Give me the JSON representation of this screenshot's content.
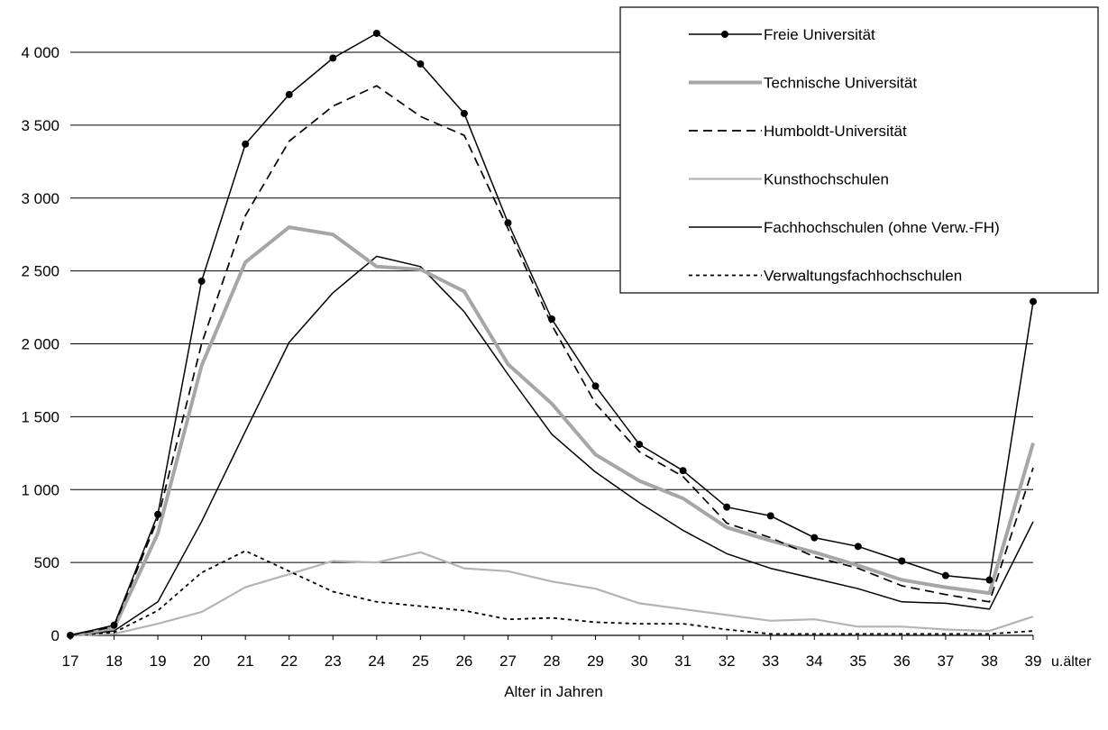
{
  "chart_data": {
    "type": "line",
    "title": "",
    "xlabel": "Alter in Jahren",
    "ylabel": "",
    "categories": [
      "17",
      "18",
      "19",
      "20",
      "21",
      "22",
      "23",
      "24",
      "25",
      "26",
      "27",
      "28",
      "29",
      "30",
      "31",
      "32",
      "33",
      "34",
      "35",
      "36",
      "37",
      "38",
      "39"
    ],
    "x_suffix_label": "u.älter",
    "ylim": [
      0,
      4000
    ],
    "yticks": [
      0,
      500,
      1000,
      1500,
      2000,
      2500,
      3000,
      3500,
      4000
    ],
    "ytick_labels": [
      "0",
      "500",
      "1 000",
      "1 500",
      "2 000",
      "2 500",
      "3 000",
      "3 500",
      "4 000"
    ],
    "grid": "horizontal",
    "legend_position": "top-right",
    "series": [
      {
        "name": "Freie Universität",
        "style": "solid-marker",
        "color": "#000000",
        "values": [
          0,
          70,
          830,
          2430,
          3370,
          3710,
          3960,
          4130,
          3920,
          3580,
          2830,
          2170,
          1710,
          1310,
          1130,
          880,
          820,
          670,
          610,
          510,
          410,
          380,
          2290
        ]
      },
      {
        "name": "Technische Universität",
        "style": "thick-grey",
        "color": "#a6a6a6",
        "values": [
          0,
          50,
          700,
          1850,
          2560,
          2800,
          2750,
          2530,
          2510,
          2360,
          1860,
          1590,
          1240,
          1060,
          940,
          740,
          650,
          570,
          480,
          380,
          330,
          290,
          1320
        ]
      },
      {
        "name": "Humboldt-Universität",
        "style": "dashed",
        "color": "#000000",
        "values": [
          0,
          60,
          800,
          2000,
          2880,
          3390,
          3630,
          3770,
          3560,
          3430,
          2790,
          2130,
          1590,
          1260,
          1090,
          770,
          670,
          540,
          460,
          340,
          280,
          230,
          1150
        ]
      },
      {
        "name": "Kunsthochschulen",
        "style": "dotted-grey",
        "color": "#b4b4b4",
        "values": [
          0,
          10,
          80,
          160,
          330,
          420,
          510,
          500,
          570,
          460,
          440,
          370,
          320,
          220,
          180,
          140,
          100,
          110,
          60,
          60,
          40,
          30,
          130
        ]
      },
      {
        "name": "Fachhochschulen (ohne Verw.-FH)",
        "style": "solid",
        "color": "#000000",
        "values": [
          0,
          30,
          230,
          780,
          1400,
          2010,
          2350,
          2600,
          2530,
          2220,
          1790,
          1380,
          1120,
          910,
          720,
          560,
          460,
          390,
          320,
          230,
          220,
          180,
          780
        ]
      },
      {
        "name": "Verwaltungsfachhochschulen",
        "style": "short-dashed",
        "color": "#000000",
        "values": [
          0,
          20,
          170,
          430,
          580,
          440,
          300,
          230,
          200,
          170,
          110,
          120,
          90,
          80,
          80,
          40,
          10,
          10,
          10,
          10,
          10,
          10,
          30
        ]
      }
    ]
  }
}
